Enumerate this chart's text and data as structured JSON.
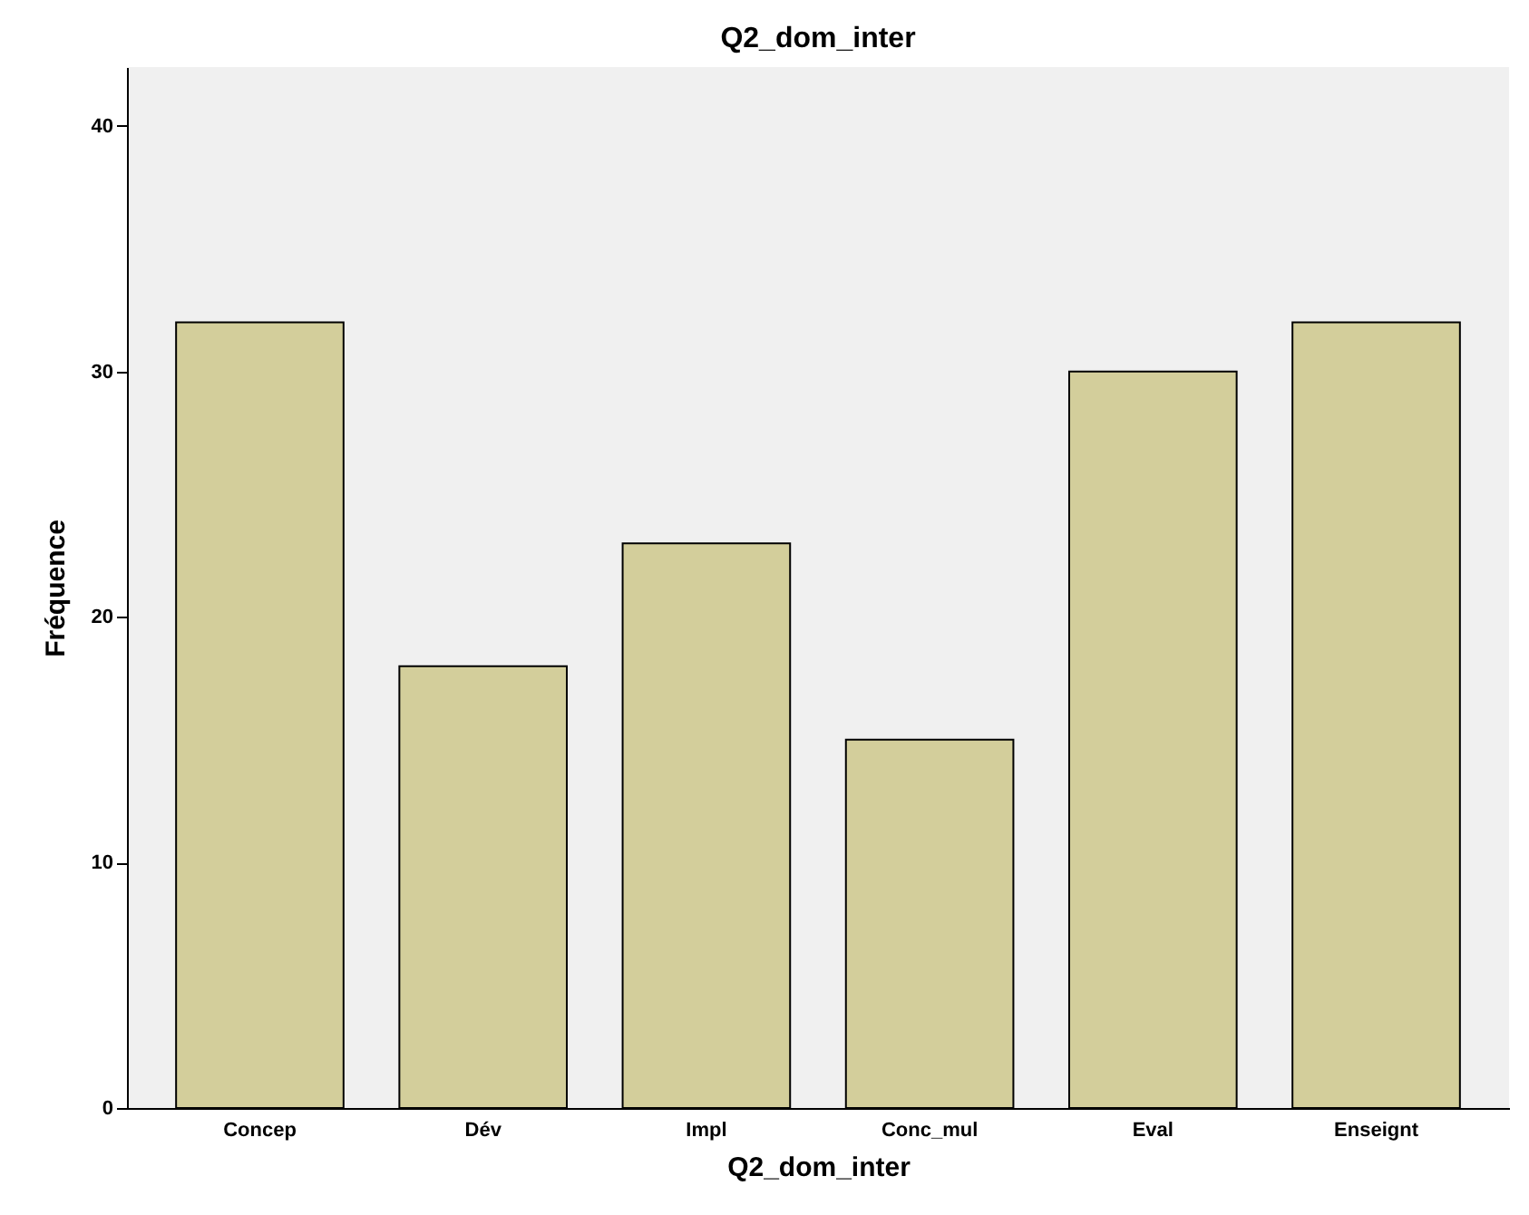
{
  "chart_data": {
    "type": "bar",
    "title": "Q2_dom_inter",
    "xlabel": "Q2_dom_inter",
    "ylabel": "Fréquence",
    "categories": [
      "Concep",
      "Dév",
      "Impl",
      "Conc_mul",
      "Eval",
      "Enseignt"
    ],
    "values": [
      32,
      18,
      23,
      15,
      30,
      32
    ],
    "color": "#d3ce9b",
    "ylim": [
      0,
      42.4
    ],
    "yticks": [
      0,
      10,
      20,
      30,
      40
    ],
    "grid": false
  }
}
